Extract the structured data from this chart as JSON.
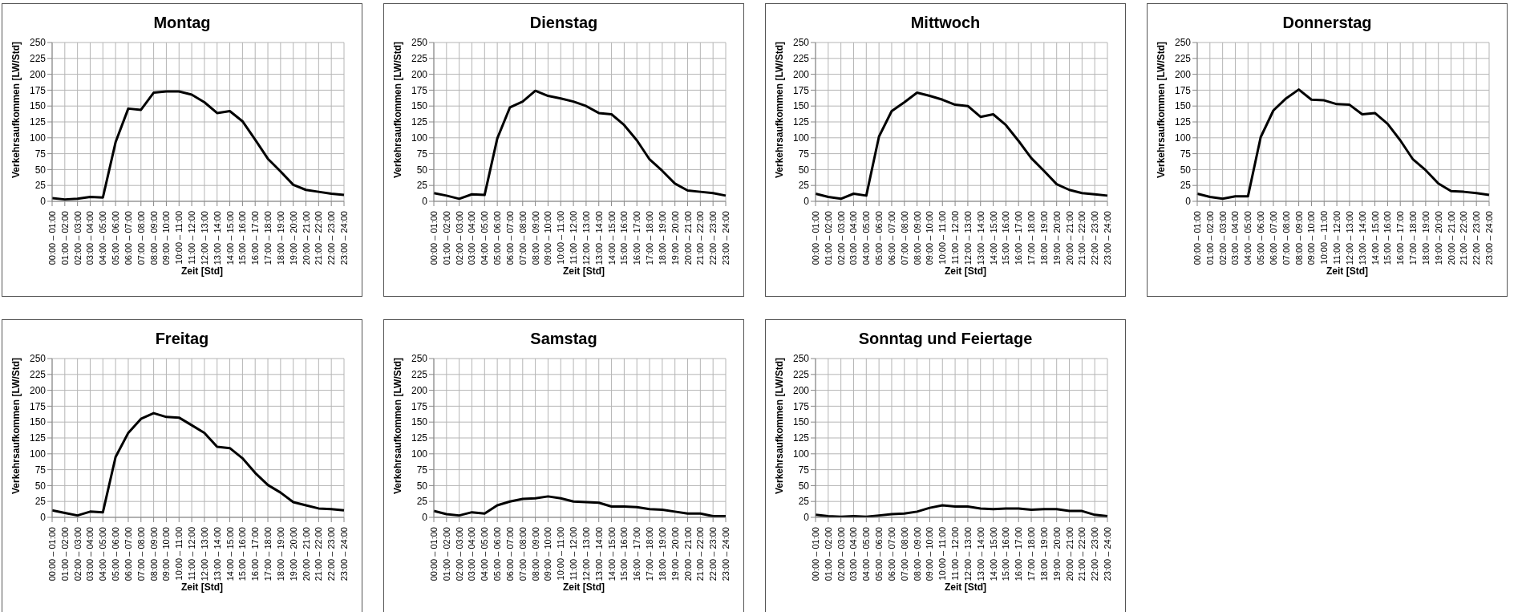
{
  "chart_data": [
    {
      "type": "line",
      "title": "Montag",
      "xlabel": "Zeit [Std]",
      "ylabel": "Verkehrsaufkommen [LW/Std]",
      "categories": [
        "00:00 – 01:00",
        "01:00 – 02:00",
        "02:00 – 03:00",
        "03:00 – 04:00",
        "04:00 – 05:00",
        "05:00 – 06:00",
        "06:00 – 07:00",
        "07:00 – 08:00",
        "08:00 – 09:00",
        "09:00 – 10:00",
        "10:00 – 11:00",
        "11:00 – 12:00",
        "12:00 – 13:00",
        "13:00 – 14:00",
        "14:00 – 15:00",
        "15:00 – 16:00",
        "16:00 – 17:00",
        "17:00 – 18:00",
        "18:00 – 19:00",
        "19:00 – 20:00",
        "20:00 – 21:00",
        "21:00 – 22:00",
        "22:00 – 23:00",
        "23:00 – 24:00"
      ],
      "series": [
        {
          "color": "#000000",
          "values": [
            5,
            3,
            4,
            7,
            6,
            93,
            146,
            144,
            171,
            173,
            173,
            168,
            156,
            139,
            142,
            126,
            97,
            67,
            47,
            26,
            18,
            15,
            12,
            10
          ]
        }
      ],
      "ylim": [
        0,
        250
      ],
      "yticks": [
        0,
        25,
        50,
        75,
        100,
        125,
        150,
        175,
        200,
        225,
        250
      ],
      "grid": true,
      "marker": "none",
      "line_style": "solid"
    },
    {
      "type": "line",
      "title": "Dienstag",
      "xlabel": "Zeit [Std]",
      "ylabel": "Verkehrsaufkommen [LW/Std]",
      "categories": [
        "00:00 – 01:00",
        "01:00 – 02:00",
        "02:00 – 03:00",
        "03:00 – 04:00",
        "04:00 – 05:00",
        "05:00 – 06:00",
        "06:00 – 07:00",
        "07:00 – 08:00",
        "08:00 – 09:00",
        "09:00 – 10:00",
        "10:00 – 11:00",
        "11:00 – 12:00",
        "12:00 – 13:00",
        "13:00 – 14:00",
        "14:00 – 15:00",
        "15:00 – 16:00",
        "16:00 – 17:00",
        "17:00 – 18:00",
        "18:00 – 19:00",
        "19:00 – 20:00",
        "20:00 – 21:00",
        "21:00 – 22:00",
        "22:00 – 23:00",
        "23:00 – 24:00"
      ],
      "series": [
        {
          "color": "#000000",
          "values": [
            13,
            9,
            4,
            11,
            10,
            99,
            148,
            157,
            174,
            166,
            162,
            157,
            150,
            139,
            137,
            120,
            96,
            66,
            48,
            28,
            17,
            15,
            13,
            9
          ]
        }
      ],
      "ylim": [
        0,
        250
      ],
      "yticks": [
        0,
        25,
        50,
        75,
        100,
        125,
        150,
        175,
        200,
        225,
        250
      ],
      "grid": true,
      "marker": "none",
      "line_style": "solid"
    },
    {
      "type": "line",
      "title": "Mittwoch",
      "xlabel": "Zeit [Std]",
      "ylabel": "Verkehrsaufkommen [LW/Std]",
      "categories": [
        "00:00 – 01:00",
        "01:00 – 02:00",
        "02:00 – 03:00",
        "03:00 – 04:00",
        "04:00 – 05:00",
        "05:00 – 06:00",
        "06:00 – 07:00",
        "07:00 – 08:00",
        "08:00 – 09:00",
        "09:00 – 10:00",
        "10:00 – 11:00",
        "11:00 – 12:00",
        "12:00 – 13:00",
        "13:00 – 14:00",
        "14:00 – 15:00",
        "15:00 – 16:00",
        "16:00 – 17:00",
        "17:00 – 18:00",
        "18:00 – 19:00",
        "19:00 – 20:00",
        "20:00 – 21:00",
        "21:00 – 22:00",
        "22:00 – 23:00",
        "23:00 – 24:00"
      ],
      "series": [
        {
          "color": "#000000",
          "values": [
            12,
            7,
            4,
            12,
            9,
            102,
            142,
            156,
            171,
            166,
            160,
            152,
            150,
            133,
            137,
            120,
            95,
            68,
            48,
            27,
            18,
            13,
            11,
            9
          ]
        }
      ],
      "ylim": [
        0,
        250
      ],
      "yticks": [
        0,
        25,
        50,
        75,
        100,
        125,
        150,
        175,
        200,
        225,
        250
      ],
      "grid": true,
      "marker": "none",
      "line_style": "solid"
    },
    {
      "type": "line",
      "title": "Donnerstag",
      "xlabel": "Zeit [Std]",
      "ylabel": "Verkehrsaufkommen [LW/Std]",
      "categories": [
        "00:00 – 01:00",
        "01:00 – 02:00",
        "02:00 – 03:00",
        "03:00 – 04:00",
        "04:00 – 05:00",
        "05:00 – 06:00",
        "06:00 – 07:00",
        "07:00 – 08:00",
        "08:00 – 09:00",
        "09:00 – 10:00",
        "10:00 – 11:00",
        "11:00 – 12:00",
        "12:00 – 13:00",
        "13:00 – 14:00",
        "14:00 – 15:00",
        "15:00 – 16:00",
        "16:00 – 17:00",
        "17:00 – 18:00",
        "18:00 – 19:00",
        "19:00 – 20:00",
        "20:00 – 21:00",
        "21:00 – 22:00",
        "22:00 – 23:00",
        "23:00 – 24:00"
      ],
      "series": [
        {
          "color": "#000000",
          "values": [
            12,
            7,
            4,
            8,
            8,
            101,
            143,
            162,
            176,
            160,
            159,
            153,
            152,
            137,
            139,
            122,
            96,
            66,
            49,
            28,
            16,
            15,
            13,
            10
          ]
        }
      ],
      "ylim": [
        0,
        250
      ],
      "yticks": [
        0,
        25,
        50,
        75,
        100,
        125,
        150,
        175,
        200,
        225,
        250
      ],
      "grid": true,
      "marker": "none",
      "line_style": "solid"
    },
    {
      "type": "line",
      "title": "Freitag",
      "xlabel": "Zeit [Std]",
      "ylabel": "Verkehrsaufkommen [LW/Std]",
      "categories": [
        "00:00 – 01:00",
        "01:00 – 02:00",
        "02:00 – 03:00",
        "03:00 – 04:00",
        "04:00 – 05:00",
        "05:00 – 06:00",
        "06:00 – 07:00",
        "07:00 – 08:00",
        "08:00 – 09:00",
        "09:00 – 10:00",
        "10:00 – 11:00",
        "11:00 – 12:00",
        "12:00 – 13:00",
        "13:00 – 14:00",
        "14:00 – 15:00",
        "15:00 – 16:00",
        "16:00 – 17:00",
        "17:00 – 18:00",
        "18:00 – 19:00",
        "19:00 – 20:00",
        "20:00 – 21:00",
        "21:00 – 22:00",
        "22:00 – 23:00",
        "23:00 – 24:00"
      ],
      "series": [
        {
          "color": "#000000",
          "values": [
            11,
            7,
            3,
            9,
            8,
            95,
            133,
            155,
            164,
            158,
            157,
            145,
            133,
            111,
            109,
            93,
            70,
            51,
            39,
            24,
            19,
            14,
            13,
            11
          ]
        }
      ],
      "ylim": [
        0,
        250
      ],
      "yticks": [
        0,
        25,
        50,
        75,
        100,
        125,
        150,
        175,
        200,
        225,
        250
      ],
      "grid": true,
      "marker": "none",
      "line_style": "solid"
    },
    {
      "type": "line",
      "title": "Samstag",
      "xlabel": "Zeit [Std]",
      "ylabel": "Verkehrsaufkommen [LW/Std]",
      "categories": [
        "00:00 – 01:00",
        "01:00 – 02:00",
        "02:00 – 03:00",
        "03:00 – 04:00",
        "04:00 – 05:00",
        "05:00 – 06:00",
        "06:00 – 07:00",
        "07:00 – 08:00",
        "08:00 – 09:00",
        "09:00 – 10:00",
        "10:00 – 11:00",
        "11:00 – 12:00",
        "12:00 – 13:00",
        "13:00 – 14:00",
        "14:00 – 15:00",
        "15:00 – 16:00",
        "16:00 – 17:00",
        "17:00 – 18:00",
        "18:00 – 19:00",
        "19:00 – 20:00",
        "20:00 – 21:00",
        "21:00 – 22:00",
        "22:00 – 23:00",
        "23:00 – 24:00"
      ],
      "series": [
        {
          "color": "#000000",
          "values": [
            10,
            5,
            3,
            8,
            6,
            19,
            25,
            29,
            30,
            33,
            30,
            25,
            24,
            23,
            17,
            17,
            16,
            13,
            12,
            9,
            6,
            6,
            2,
            2
          ]
        }
      ],
      "ylim": [
        0,
        250
      ],
      "yticks": [
        0,
        25,
        50,
        75,
        100,
        125,
        150,
        175,
        200,
        225,
        250
      ],
      "grid": true,
      "marker": "none",
      "line_style": "solid"
    },
    {
      "type": "line",
      "title": "Sonntag und Feiertage",
      "xlabel": "Zeit [Std]",
      "ylabel": "Verkehrsaufkommen [LW/Std]",
      "categories": [
        "00:00 – 01:00",
        "01:00 – 02:00",
        "02:00 – 03:00",
        "03:00 – 04:00",
        "04:00 – 05:00",
        "05:00 – 06:00",
        "06:00 – 07:00",
        "07:00 – 08:00",
        "08:00 – 09:00",
        "09:00 – 10:00",
        "10:00 – 11:00",
        "11:00 – 12:00",
        "12:00 – 13:00",
        "13:00 – 14:00",
        "14:00 – 15:00",
        "15:00 – 16:00",
        "16:00 – 17:00",
        "17:00 – 18:00",
        "18:00 – 19:00",
        "19:00 – 20:00",
        "20:00 – 21:00",
        "21:00 – 22:00",
        "22:00 – 23:00",
        "23:00 – 24:00"
      ],
      "series": [
        {
          "color": "#000000",
          "values": [
            4,
            2,
            1,
            2,
            1,
            3,
            5,
            6,
            9,
            15,
            19,
            17,
            17,
            14,
            13,
            14,
            14,
            12,
            13,
            13,
            10,
            10,
            4,
            2
          ]
        }
      ],
      "ylim": [
        0,
        250
      ],
      "yticks": [
        0,
        25,
        50,
        75,
        100,
        125,
        150,
        175,
        200,
        225,
        250
      ],
      "grid": true,
      "marker": "none",
      "line_style": "solid"
    }
  ]
}
